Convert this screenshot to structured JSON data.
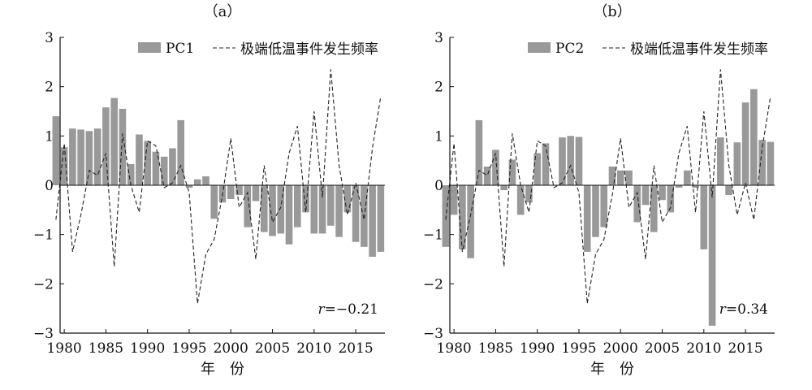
{
  "chart_data": [
    {
      "type": "bar+line",
      "title": "（a）",
      "xlabel": "年　份",
      "ylabel": "",
      "xlim": [
        1979.5,
        2018.5
      ],
      "ylim": [
        -3,
        3
      ],
      "xticks": [
        1980,
        1985,
        1990,
        1995,
        2000,
        2005,
        2010,
        2015
      ],
      "yticks": [
        -3,
        -2,
        -1,
        0,
        1,
        2,
        3
      ],
      "legend_position": "top-right",
      "annotation": "r=−0.21",
      "x": [
        1979,
        1980,
        1981,
        1982,
        1983,
        1984,
        1985,
        1986,
        1987,
        1988,
        1989,
        1990,
        1991,
        1992,
        1993,
        1994,
        1995,
        1996,
        1997,
        1998,
        1999,
        2000,
        2001,
        2002,
        2003,
        2004,
        2005,
        2006,
        2007,
        2008,
        2009,
        2010,
        2011,
        2012,
        2013,
        2014,
        2015,
        2016,
        2017,
        2018
      ],
      "series": [
        {
          "name": "PC1",
          "kind": "bar",
          "color": "#999999",
          "values": [
            1.4,
            0.77,
            1.15,
            1.13,
            1.1,
            1.15,
            1.58,
            1.77,
            1.55,
            0.43,
            1.03,
            0.9,
            0.68,
            0.58,
            0.75,
            1.32,
            -0.05,
            0.12,
            0.18,
            -0.68,
            -0.35,
            -0.28,
            -0.2,
            -0.85,
            -0.32,
            -0.95,
            -1.03,
            -0.98,
            -1.2,
            -0.85,
            -0.55,
            -0.98,
            -0.98,
            -0.82,
            -1.05,
            -0.55,
            -1.15,
            -1.25,
            -1.45,
            -1.35
          ]
        },
        {
          "name": "极端低温事件发生频率",
          "kind": "line",
          "style": "dashed",
          "color": "#222222",
          "values": [
            -0.7,
            0.85,
            -1.35,
            -0.6,
            0.3,
            0.2,
            0.65,
            -1.65,
            1.05,
            0.0,
            -0.55,
            0.9,
            0.8,
            -0.05,
            0.05,
            0.4,
            -0.15,
            -2.4,
            -1.4,
            -1.1,
            -0.2,
            0.95,
            -0.45,
            -0.15,
            -1.5,
            0.4,
            -0.75,
            -0.45,
            0.65,
            1.2,
            -0.55,
            1.5,
            -0.25,
            2.35,
            0.4,
            -0.6,
            0.05,
            -0.7,
            0.75,
            1.8
          ]
        }
      ]
    },
    {
      "type": "bar+line",
      "title": "（b）",
      "xlabel": "年　份",
      "ylabel": "",
      "xlim": [
        1979.5,
        2018.5
      ],
      "ylim": [
        -3,
        3
      ],
      "xticks": [
        1980,
        1985,
        1990,
        1995,
        2000,
        2005,
        2010,
        2015
      ],
      "yticks": [
        -3,
        -2,
        -1,
        0,
        1,
        2,
        3
      ],
      "legend_position": "top-right",
      "annotation": "r=0.34",
      "x": [
        1979,
        1980,
        1981,
        1982,
        1983,
        1984,
        1985,
        1986,
        1987,
        1988,
        1989,
        1990,
        1991,
        1992,
        1993,
        1994,
        1995,
        1996,
        1997,
        1998,
        1999,
        2000,
        2001,
        2002,
        2003,
        2004,
        2005,
        2006,
        2007,
        2008,
        2009,
        2010,
        2011,
        2012,
        2013,
        2014,
        2015,
        2016,
        2017,
        2018
      ],
      "series": [
        {
          "name": "PC2",
          "kind": "bar",
          "color": "#999999",
          "values": [
            -1.25,
            -0.6,
            -1.3,
            -1.48,
            1.32,
            0.38,
            0.72,
            -0.1,
            0.52,
            -0.6,
            -0.35,
            0.65,
            0.85,
            0.0,
            0.97,
            1.0,
            0.98,
            -1.35,
            -1.05,
            -0.85,
            0.38,
            0.3,
            0.3,
            -0.75,
            -0.4,
            -0.95,
            -0.3,
            -0.55,
            -0.05,
            0.3,
            -0.05,
            -1.3,
            -2.85,
            0.97,
            -0.2,
            0.87,
            1.68,
            1.95,
            0.92,
            0.88
          ]
        },
        {
          "name": "极端低温事件发生频率",
          "kind": "line",
          "style": "dashed",
          "color": "#222222",
          "values": [
            -0.7,
            0.85,
            -1.35,
            -0.6,
            0.3,
            0.2,
            0.65,
            -1.65,
            1.05,
            0.0,
            -0.55,
            0.9,
            0.8,
            -0.05,
            0.05,
            0.4,
            -0.15,
            -2.4,
            -1.4,
            -1.1,
            -0.2,
            0.95,
            -0.45,
            -0.15,
            -1.5,
            0.4,
            -0.75,
            -0.45,
            0.65,
            1.2,
            -0.55,
            1.5,
            -0.25,
            2.35,
            0.4,
            -0.6,
            0.05,
            -0.7,
            0.75,
            1.8
          ]
        }
      ]
    }
  ]
}
